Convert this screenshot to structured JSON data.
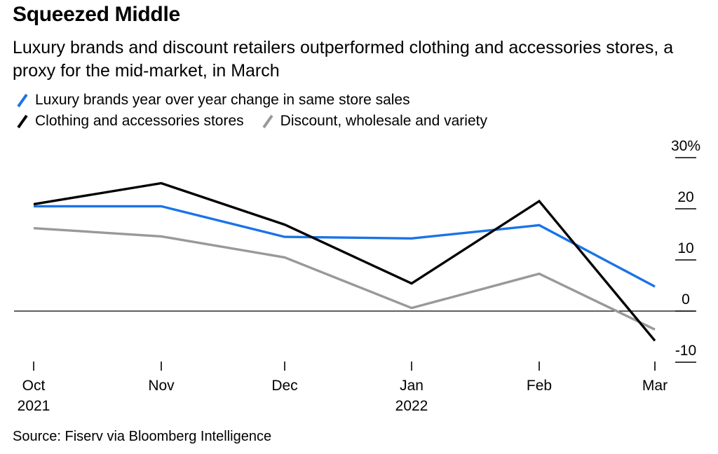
{
  "title": "Squeezed Middle",
  "subtitle": "Luxury brands and discount retailers outperformed clothing and accessories stores, a proxy for the mid-market, in March",
  "source": "Source: Fiserv via Bloomberg Intelligence",
  "chart_data": {
    "type": "line",
    "categories": [
      "Oct",
      "Nov",
      "Dec",
      "Jan",
      "Feb",
      "Mar"
    ],
    "category_sublabels": [
      "2021",
      "",
      "",
      "2022",
      "",
      ""
    ],
    "y_tick_labels": [
      "30%",
      "20",
      "10",
      "0",
      "-10"
    ],
    "y_ticks": [
      30,
      20,
      10,
      0,
      -10
    ],
    "ylim": [
      -10,
      30
    ],
    "grid": false,
    "legend_position": "top-left",
    "series": [
      {
        "name": "Luxury brands year over year change in same store sales",
        "color": "#1a73e8",
        "values": [
          20.5,
          20.5,
          14.5,
          14.2,
          16.8,
          4.8
        ]
      },
      {
        "name": "Clothing and accessories stores",
        "color": "#000000",
        "values": [
          20.9,
          25.0,
          16.9,
          5.4,
          21.5,
          -5.8
        ]
      },
      {
        "name": "Discount, wholesale and variety",
        "color": "#999999",
        "values": [
          16.2,
          14.6,
          10.5,
          0.6,
          7.3,
          -3.6
        ]
      }
    ]
  }
}
